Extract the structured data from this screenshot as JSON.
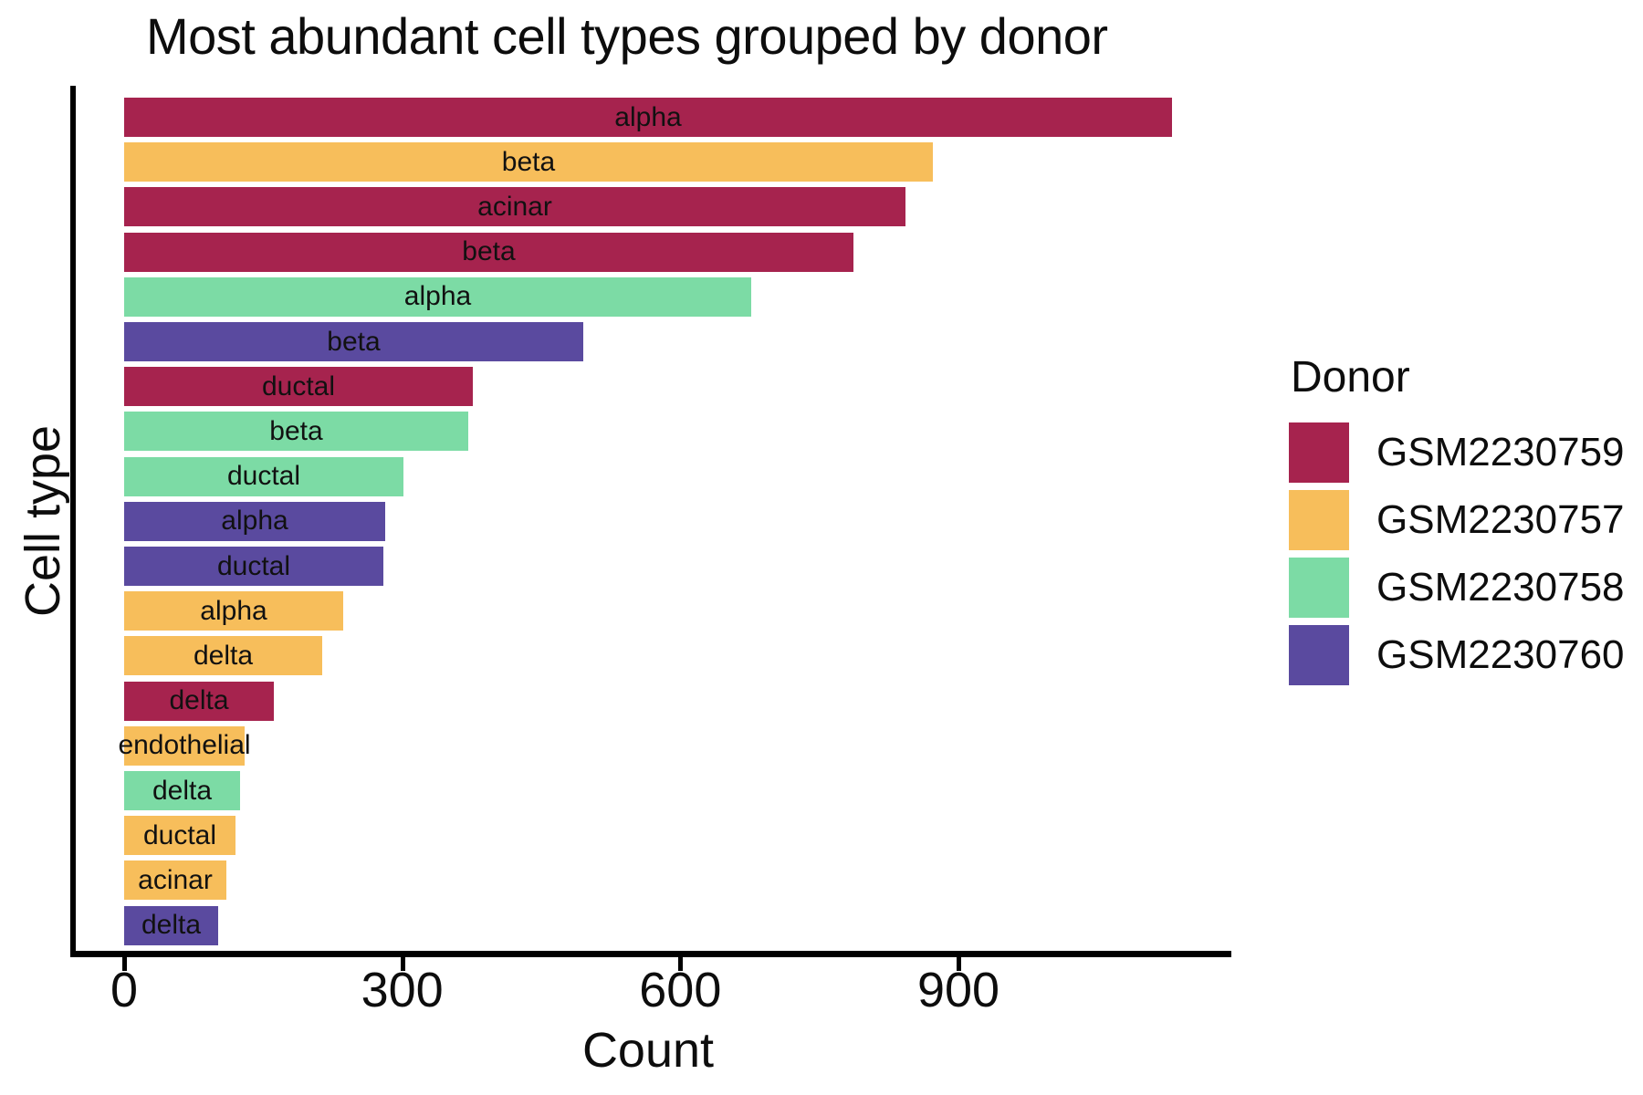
{
  "title": "Most abundant cell types grouped by donor",
  "x_axis": {
    "label": "Count",
    "ticks": [
      "0",
      "300",
      "600",
      "900"
    ]
  },
  "y_axis": {
    "label": "Cell type"
  },
  "legend": {
    "title": "Donor",
    "items": [
      {
        "label": "GSM2230759",
        "color": "#A6234E"
      },
      {
        "label": "GSM2230757",
        "color": "#F7BE5B"
      },
      {
        "label": "GSM2230758",
        "color": "#7CDBA5"
      },
      {
        "label": "GSM2230760",
        "color": "#5A4A9F"
      }
    ]
  },
  "chart_data": {
    "type": "bar",
    "orientation": "horizontal",
    "title": "Most abundant cell types grouped by donor",
    "xlabel": "Count",
    "ylabel": "Cell type",
    "xlim": [
      0,
      1190
    ],
    "xticks": [
      0,
      300,
      600,
      900
    ],
    "grid": false,
    "legend_title": "Donor",
    "legend_position": "right",
    "donor_colors": {
      "GSM2230759": "#A6234E",
      "GSM2230757": "#F7BE5B",
      "GSM2230758": "#7CDBA5",
      "GSM2230760": "#5A4A9F"
    },
    "bars": [
      {
        "cell_type": "alpha",
        "donor": "GSM2230759",
        "count": 1130
      },
      {
        "cell_type": "beta",
        "donor": "GSM2230757",
        "count": 872
      },
      {
        "cell_type": "acinar",
        "donor": "GSM2230759",
        "count": 843
      },
      {
        "cell_type": "beta",
        "donor": "GSM2230759",
        "count": 787
      },
      {
        "cell_type": "alpha",
        "donor": "GSM2230758",
        "count": 676
      },
      {
        "cell_type": "beta",
        "donor": "GSM2230760",
        "count": 495
      },
      {
        "cell_type": "ductal",
        "donor": "GSM2230759",
        "count": 376
      },
      {
        "cell_type": "beta",
        "donor": "GSM2230758",
        "count": 371
      },
      {
        "cell_type": "ductal",
        "donor": "GSM2230758",
        "count": 301
      },
      {
        "cell_type": "alpha",
        "donor": "GSM2230760",
        "count": 282
      },
      {
        "cell_type": "ductal",
        "donor": "GSM2230760",
        "count": 280
      },
      {
        "cell_type": "alpha",
        "donor": "GSM2230757",
        "count": 236
      },
      {
        "cell_type": "delta",
        "donor": "GSM2230757",
        "count": 214
      },
      {
        "cell_type": "delta",
        "donor": "GSM2230759",
        "count": 161
      },
      {
        "cell_type": "endothelial",
        "donor": "GSM2230757",
        "count": 130
      },
      {
        "cell_type": "delta",
        "donor": "GSM2230758",
        "count": 125
      },
      {
        "cell_type": "ductal",
        "donor": "GSM2230757",
        "count": 120
      },
      {
        "cell_type": "acinar",
        "donor": "GSM2230757",
        "count": 110
      },
      {
        "cell_type": "delta",
        "donor": "GSM2230760",
        "count": 101
      }
    ]
  }
}
